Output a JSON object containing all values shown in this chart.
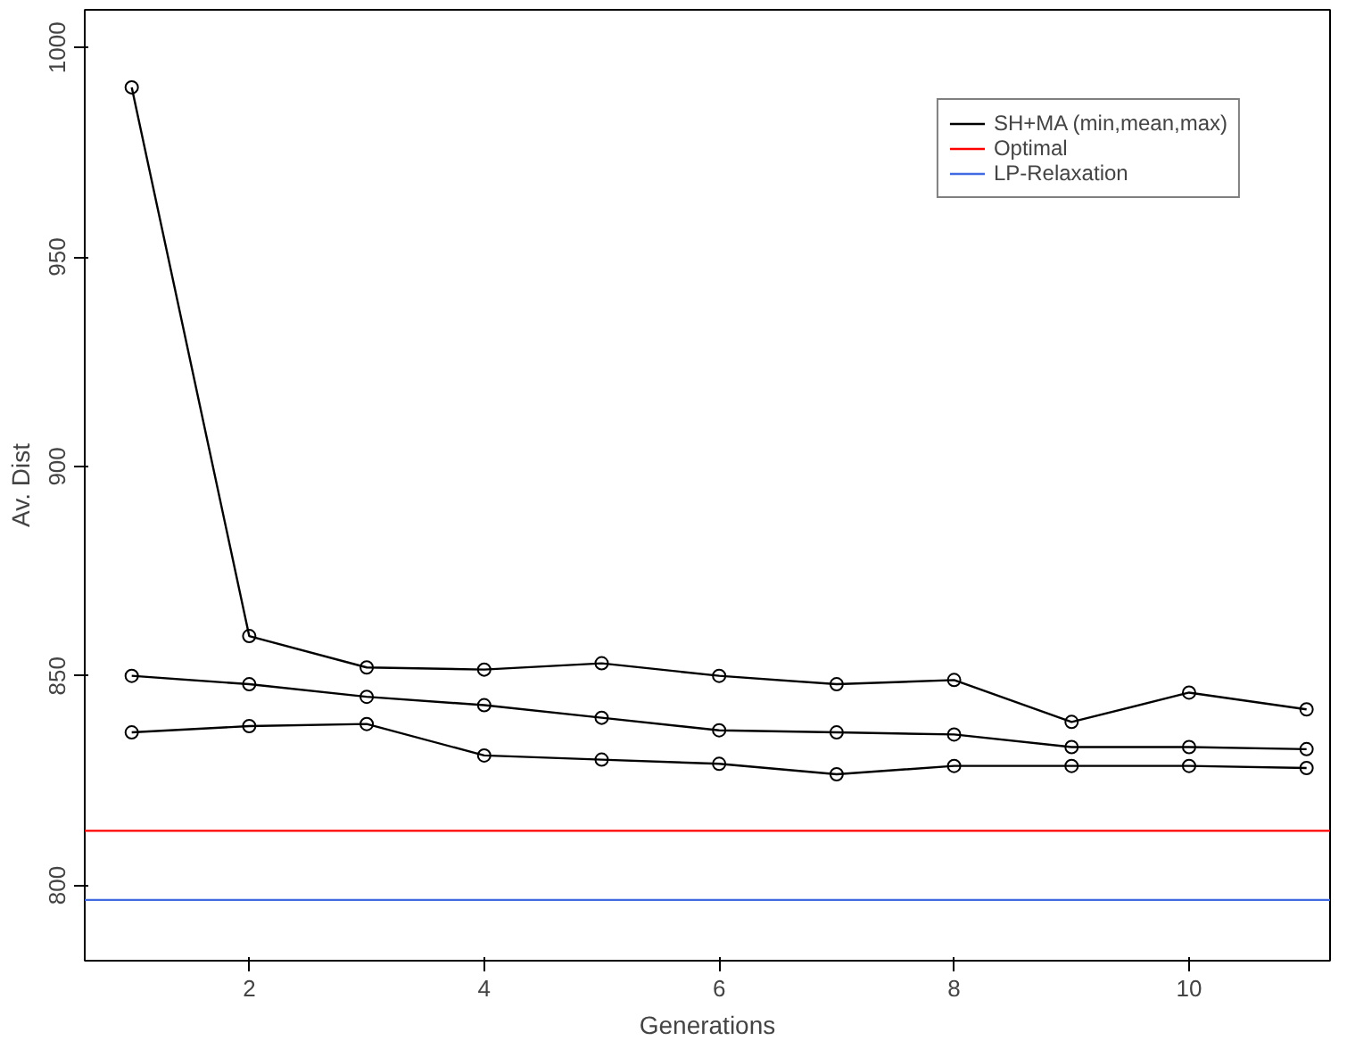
{
  "chart_data": {
    "type": "line",
    "xlabel": "Generations",
    "ylabel": "Av. Dist",
    "x": [
      1,
      2,
      3,
      4,
      5,
      6,
      7,
      8,
      9,
      10,
      11
    ],
    "series": [
      {
        "name": "SH+MA (min,mean,max)",
        "color": "#000000",
        "values": [
          990.5,
          859.5,
          852,
          851.5,
          853,
          850,
          848,
          849,
          839,
          846,
          842
        ]
      },
      {
        "color": "#000000",
        "values": [
          850,
          848,
          845,
          843,
          840,
          837,
          836.5,
          836,
          833,
          833,
          832.5
        ]
      },
      {
        "color": "#000000",
        "values": [
          836.5,
          838,
          838.5,
          831,
          830,
          829,
          826.5,
          828.5,
          828.5,
          828.5,
          828
        ]
      }
    ],
    "ref_lines": [
      {
        "axis": "y",
        "value": 813,
        "label": "Optimal",
        "color": "#ff0000"
      },
      {
        "axis": "y",
        "value": 796.5,
        "label": "LP-Relaxation",
        "color": "#4169e1"
      }
    ],
    "xlim": [
      0.6,
      11.2
    ],
    "ylim": [
      782,
      1009
    ],
    "xticks": [
      2,
      4,
      6,
      8,
      10
    ],
    "yticks": [
      800,
      850,
      900,
      950,
      1000
    ],
    "grid": false,
    "legend": "top right",
    "marker": "circle",
    "line_style": "solid"
  }
}
